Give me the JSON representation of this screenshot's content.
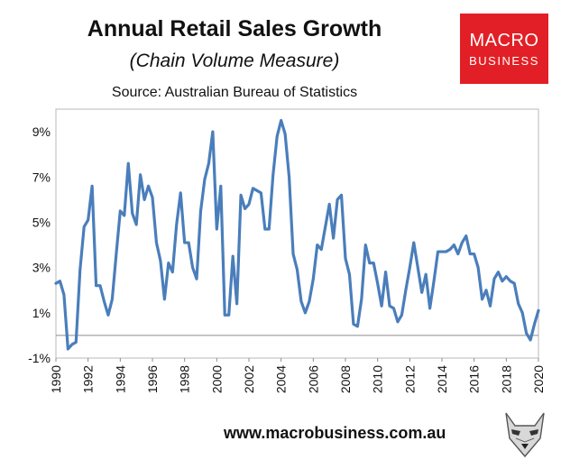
{
  "header": {
    "title": "Annual Retail Sales Growth",
    "subtitle": "(Chain Volume Measure)",
    "source": "Source: Australian Bureau of Statistics"
  },
  "logo": {
    "line1": "MACRO",
    "line2": "BUSINESS",
    "color": "#e21f26"
  },
  "footer": {
    "website": "www.macrobusiness.com.au"
  },
  "chart_data": {
    "type": "line",
    "title": "Annual Retail Sales Growth",
    "subtitle": "(Chain Volume Measure)",
    "xlabel": "",
    "ylabel": "",
    "xlim": [
      1990,
      2020
    ],
    "ylim": [
      -1,
      10
    ],
    "grid": false,
    "legend": "none",
    "line_color": "#4a7ebb",
    "y_ticks": [
      -1,
      1,
      3,
      5,
      7,
      9
    ],
    "y_tick_labels": [
      "-1%",
      "1%",
      "3%",
      "5%",
      "7%",
      "9%"
    ],
    "x_ticks": [
      1990,
      1992,
      1994,
      1996,
      1998,
      2000,
      2002,
      2004,
      2006,
      2008,
      2010,
      2012,
      2014,
      2016,
      2018,
      2020
    ],
    "x_tick_labels": [
      "1990",
      "1992",
      "1994",
      "1996",
      "1998",
      "2000",
      "2002",
      "2004",
      "2006",
      "2008",
      "2010",
      "2012",
      "2014",
      "2016",
      "2018",
      "2020"
    ],
    "series": [
      {
        "x": [
          1990.0,
          1990.25,
          1990.5,
          1990.75,
          1991.0,
          1991.25,
          1991.5,
          1991.75,
          1992.0,
          1992.25,
          1992.5,
          1992.75,
          1993.0,
          1993.25,
          1993.5,
          1993.75,
          1994.0,
          1994.25,
          1994.5,
          1994.75,
          1995.0,
          1995.25,
          1995.5,
          1995.75,
          1996.0,
          1996.25,
          1996.5,
          1996.75,
          1997.0,
          1997.25,
          1997.5,
          1997.75,
          1998.0,
          1998.25,
          1998.5,
          1998.75,
          1999.0,
          1999.25,
          1999.5,
          1999.75,
          2000.0,
          2000.25,
          2000.5,
          2000.75,
          2001.0,
          2001.25,
          2001.5,
          2001.75,
          2002.0,
          2002.25,
          2002.5,
          2002.75,
          2003.0,
          2003.25,
          2003.5,
          2003.75,
          2004.0,
          2004.25,
          2004.5,
          2004.75,
          2005.0,
          2005.25,
          2005.5,
          2005.75,
          2006.0,
          2006.25,
          2006.5,
          2006.75,
          2007.0,
          2007.25,
          2007.5,
          2007.75,
          2008.0,
          2008.25,
          2008.5,
          2008.75,
          2009.0,
          2009.25,
          2009.5,
          2009.75,
          2010.0,
          2010.25,
          2010.5,
          2010.75,
          2011.0,
          2011.25,
          2011.5,
          2011.75,
          2012.0,
          2012.25,
          2012.5,
          2012.75,
          2013.0,
          2013.25,
          2013.5,
          2013.75,
          2014.0,
          2014.25,
          2014.5,
          2014.75,
          2015.0,
          2015.25,
          2015.5,
          2015.75,
          2016.0,
          2016.25,
          2016.5,
          2016.75,
          2017.0,
          2017.25,
          2017.5,
          2017.75,
          2018.0,
          2018.25,
          2018.5,
          2018.75,
          2019.0,
          2019.25,
          2019.5,
          2019.75,
          2020.0
        ],
        "values": [
          2.3,
          2.4,
          1.8,
          -0.6,
          -0.4,
          -0.3,
          2.9,
          4.8,
          5.1,
          6.6,
          2.2,
          2.2,
          1.5,
          0.9,
          1.6,
          3.6,
          5.5,
          5.3,
          7.6,
          5.4,
          4.9,
          7.1,
          6.0,
          6.6,
          6.1,
          4.1,
          3.3,
          1.6,
          3.2,
          2.8,
          4.9,
          6.3,
          4.1,
          4.1,
          3.0,
          2.5,
          5.5,
          6.9,
          7.6,
          9.0,
          4.7,
          6.6,
          0.9,
          0.9,
          3.5,
          1.4,
          6.2,
          5.6,
          5.8,
          6.5,
          6.4,
          6.3,
          4.7,
          4.7,
          7.1,
          8.8,
          9.5,
          8.9,
          7.0,
          3.6,
          2.9,
          1.5,
          1.0,
          1.5,
          2.5,
          4.0,
          3.8,
          4.8,
          5.8,
          4.3,
          6.0,
          6.2,
          3.4,
          2.7,
          0.5,
          0.4,
          1.6,
          4.0,
          3.2,
          3.2,
          2.3,
          1.3,
          2.8,
          1.3,
          1.2,
          0.6,
          0.9,
          2.0,
          3.0,
          4.1,
          3.0,
          1.9,
          2.7,
          1.2,
          2.4,
          3.7,
          3.7,
          3.7,
          3.8,
          4.0,
          3.6,
          4.1,
          4.4,
          3.6,
          3.6,
          3.0,
          1.6,
          2.0,
          1.3,
          2.5,
          2.8,
          2.4,
          2.6,
          2.4,
          2.3,
          1.4,
          1.0,
          0.1,
          -0.2,
          0.5,
          1.1
        ]
      }
    ]
  }
}
